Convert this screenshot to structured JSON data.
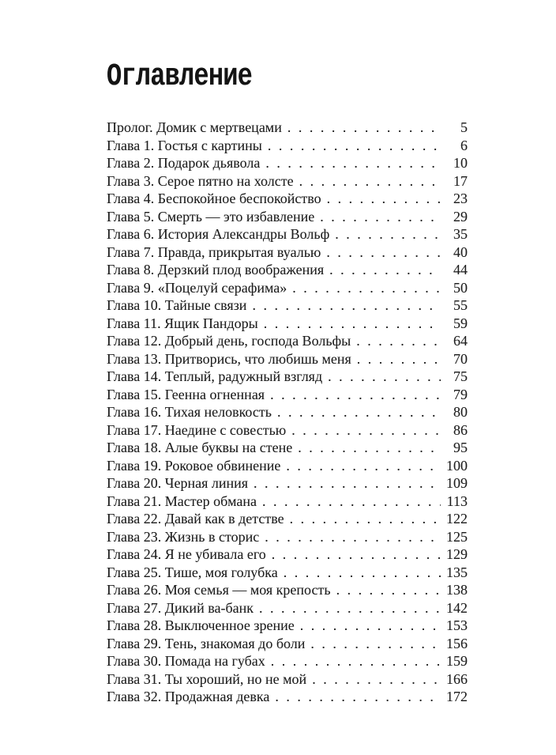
{
  "page": {
    "title": "Оглавление",
    "dot_leader": ". ",
    "entries": [
      {
        "label": "Пролог. Домик с мертвецами",
        "page": "5"
      },
      {
        "label": "Глава 1. Гостья с картины",
        "page": "6"
      },
      {
        "label": "Глава 2. Подарок дьявола",
        "page": "10"
      },
      {
        "label": "Глава 3. Серое пятно на холсте",
        "page": "17"
      },
      {
        "label": "Глава 4. Беспокойное беспокойство",
        "page": "23"
      },
      {
        "label": "Глава 5. Смерть — это избавление",
        "page": "29"
      },
      {
        "label": "Глава 6. История Александры Вольф",
        "page": "35"
      },
      {
        "label": "Глава 7. Правда, прикрытая вуалью",
        "page": "40"
      },
      {
        "label": "Глава 8. Дерзкий плод воображения",
        "page": "44"
      },
      {
        "label": "Глава 9. «Поцелуй серафима»",
        "page": "50"
      },
      {
        "label": "Глава 10. Тайные связи",
        "page": "55"
      },
      {
        "label": "Глава 11. Ящик Пандоры",
        "page": "59"
      },
      {
        "label": "Глава 12. Добрый день, господа Вольфы",
        "page": "64"
      },
      {
        "label": "Глава 13. Притворись, что любишь меня",
        "page": "70"
      },
      {
        "label": "Глава 14. Теплый, радужный взгляд",
        "page": "75"
      },
      {
        "label": "Глава 15. Геенна огненная",
        "page": "79"
      },
      {
        "label": "Глава 16. Тихая неловкость",
        "page": "80"
      },
      {
        "label": "Глава 17. Наедине с совестью",
        "page": "86"
      },
      {
        "label": "Глава 18. Алые буквы на стене",
        "page": "95"
      },
      {
        "label": "Глава 19. Роковое обвинение",
        "page": "100"
      },
      {
        "label": "Глава 20. Черная линия",
        "page": "109"
      },
      {
        "label": "Глава 21. Мастер обмана",
        "page": "113"
      },
      {
        "label": "Глава 22. Давай как в детстве",
        "page": "122"
      },
      {
        "label": "Глава 23. Жизнь в сторис",
        "page": "125"
      },
      {
        "label": "Глава 24. Я не убивала его",
        "page": "129"
      },
      {
        "label": "Глава 25. Тише, моя голубка",
        "page": "135"
      },
      {
        "label": "Глава 26. Моя семья — моя крепость",
        "page": "138"
      },
      {
        "label": "Глава 27. Дикий ва-банк",
        "page": "142"
      },
      {
        "label": "Глава 28. Выключенное зрение",
        "page": "153"
      },
      {
        "label": "Глава 29. Тень, знакомая до боли",
        "page": "156"
      },
      {
        "label": "Глава 30. Помада на губах",
        "page": "159"
      },
      {
        "label": "Глава 31. Ты хороший, но не мой",
        "page": "166"
      },
      {
        "label": "Глава 32. Продажная девка",
        "page": "172"
      }
    ]
  }
}
